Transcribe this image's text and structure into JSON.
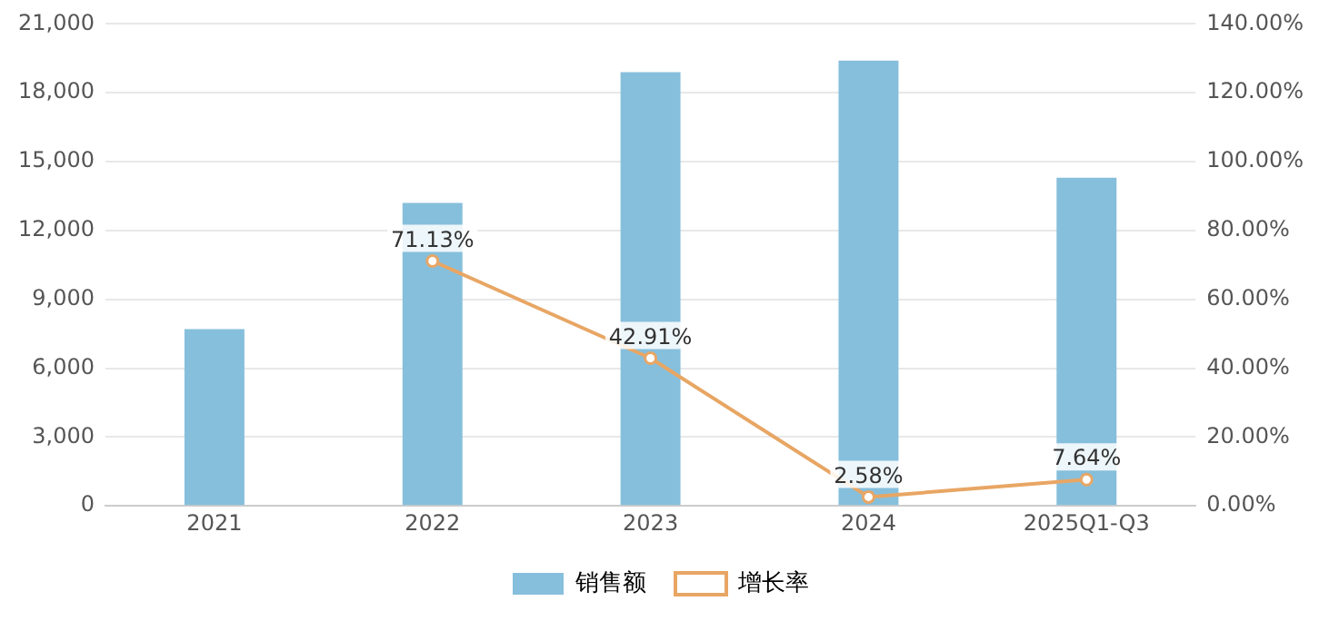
{
  "chart_data": {
    "type": "bar",
    "categories": [
      "2021",
      "2022",
      "2023",
      "2024",
      "2025Q1-Q3"
    ],
    "series": [
      {
        "name": "销售额",
        "color": "#86bfdc",
        "values": [
          7700,
          13200,
          18900,
          19400,
          14300
        ]
      },
      {
        "name": "增长率",
        "type": "line",
        "axis": "y2",
        "color": "#e8a664",
        "values": [
          null,
          71.13,
          42.91,
          2.58,
          7.64
        ],
        "value_labels": [
          null,
          "71.13%",
          "42.91%",
          "2.58%",
          "7.64%"
        ]
      }
    ],
    "ylim": [
      0,
      21000
    ],
    "yticks": [
      {
        "value": 0,
        "label": "0"
      },
      {
        "value": 3000,
        "label": "3,000"
      },
      {
        "value": 6000,
        "label": "6,000"
      },
      {
        "value": 9000,
        "label": "9,000"
      },
      {
        "value": 12000,
        "label": "12,000"
      },
      {
        "value": 15000,
        "label": "15,000"
      },
      {
        "value": 18000,
        "label": "18,000"
      },
      {
        "value": 21000,
        "label": "21,000"
      }
    ],
    "y2lim": [
      0,
      140
    ],
    "y2ticks": [
      {
        "value": 0,
        "label": "0.00%"
      },
      {
        "value": 20,
        "label": "20.00%"
      },
      {
        "value": 40,
        "label": "40.00%"
      },
      {
        "value": 60,
        "label": "60.00%"
      },
      {
        "value": 80,
        "label": "80.00%"
      },
      {
        "value": 100,
        "label": "100.00%"
      },
      {
        "value": 120,
        "label": "120.00%"
      },
      {
        "value": 140,
        "label": "140.00%"
      }
    ],
    "grid": "y",
    "legend": "bottom",
    "marker": "circle",
    "line_style": "solid"
  }
}
